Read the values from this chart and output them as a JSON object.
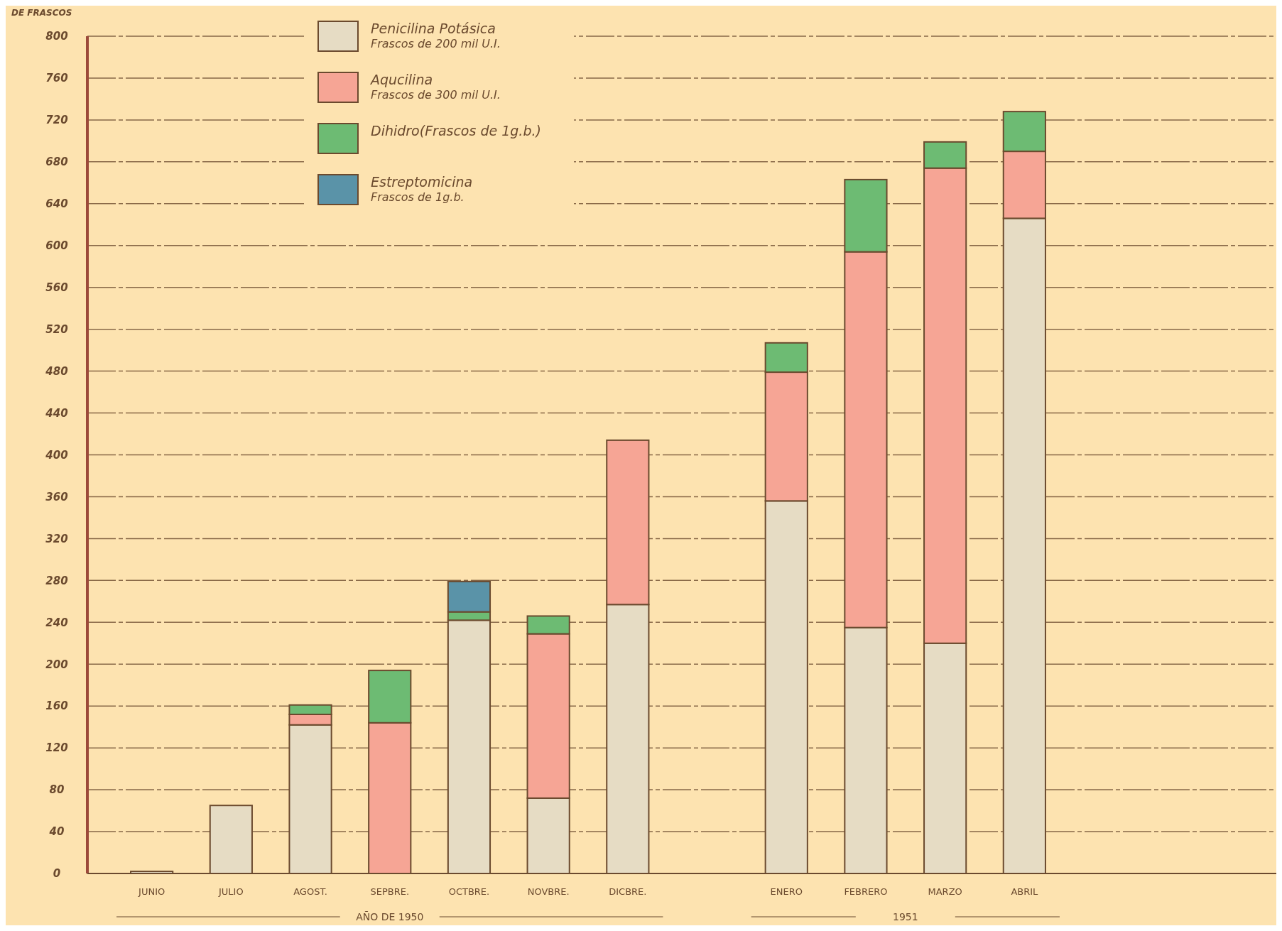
{
  "chart_data": {
    "type": "bar",
    "stacked": true,
    "ylabel": "DE FRASCOS",
    "categories": [
      "JUNIO",
      "JULIO",
      "AGOST.",
      "SEPBRE.",
      "OCTBRE.",
      "NOVBRE.",
      "DICBRE.",
      null,
      "ENERO",
      "FEBRERO",
      "MARZO",
      "ABRIL"
    ],
    "series": [
      {
        "name": "Penicilina Potásica\nFrascos de 200 mil U.I.",
        "color": "#e6dcc4",
        "values": [
          2,
          65,
          142,
          0,
          242,
          72,
          257,
          null,
          356,
          235,
          220,
          626
        ]
      },
      {
        "name": "Aqucilina\nFrascos de 300 mil U.I.",
        "color": "#f6a595",
        "values": [
          0,
          0,
          10,
          144,
          0,
          157,
          157,
          null,
          123,
          359,
          454,
          64
        ]
      },
      {
        "name": "Dihidro(Frascos de 1g.b.)",
        "color": "#6dbb73",
        "values": [
          0,
          0,
          9,
          50,
          8,
          17,
          0,
          null,
          28,
          69,
          25,
          38
        ]
      },
      {
        "name": "Estreptomicina\nFrascos de 1g.b.",
        "color": "#5a93a8",
        "values": [
          0,
          0,
          0,
          0,
          29,
          0,
          0,
          null,
          0,
          0,
          0,
          0
        ]
      }
    ],
    "ylim": [
      0,
      800
    ],
    "yticks": [
      0,
      40,
      80,
      120,
      160,
      200,
      240,
      280,
      320,
      360,
      400,
      440,
      480,
      520,
      560,
      600,
      640,
      680,
      720,
      760,
      800
    ],
    "grid": "y",
    "legend": "top left",
    "annotations": [
      "AÑO DE 1950",
      "1951"
    ]
  }
}
